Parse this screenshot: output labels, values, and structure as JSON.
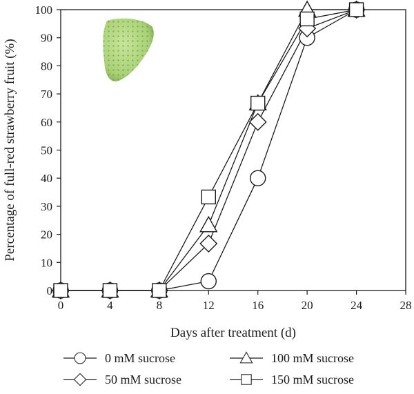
{
  "chart_data": {
    "type": "line",
    "xlabel": "Days after treatment (d)",
    "ylabel": "Percentage of full-red strawberry fruit (%)",
    "xlim": [
      0,
      28
    ],
    "ylim": [
      0,
      100
    ],
    "xticks": [
      "0",
      "4",
      "8",
      "12",
      "16",
      "20",
      "24",
      "28"
    ],
    "yticks": [
      "0",
      "10",
      "20",
      "30",
      "40",
      "50",
      "60",
      "70",
      "80",
      "90",
      "100"
    ],
    "x": [
      0,
      4,
      8,
      12,
      16,
      20,
      24
    ],
    "series": [
      {
        "name": "0 mM sucrose",
        "marker": "circle",
        "values": [
          0,
          0,
          0,
          3.3,
          40,
          90,
          100
        ]
      },
      {
        "name": "50 mM sucrose",
        "marker": "diamond",
        "values": [
          0,
          0,
          0,
          16.7,
          60,
          93.3,
          100
        ]
      },
      {
        "name": "100 mM sucrose",
        "marker": "triangle",
        "values": [
          0,
          0,
          0,
          23.3,
          66.7,
          100,
          100
        ]
      },
      {
        "name": "150 mM sucrose",
        "marker": "square",
        "values": [
          0,
          0,
          0,
          33.3,
          66.7,
          96.7,
          100
        ]
      }
    ],
    "grid": false,
    "legend_position": "bottom",
    "inset_image": "green-strawberry-image",
    "colors": {
      "line": "#1a1a1a",
      "marker_fill": "#ffffff",
      "strawberry": "#a9d178"
    }
  }
}
